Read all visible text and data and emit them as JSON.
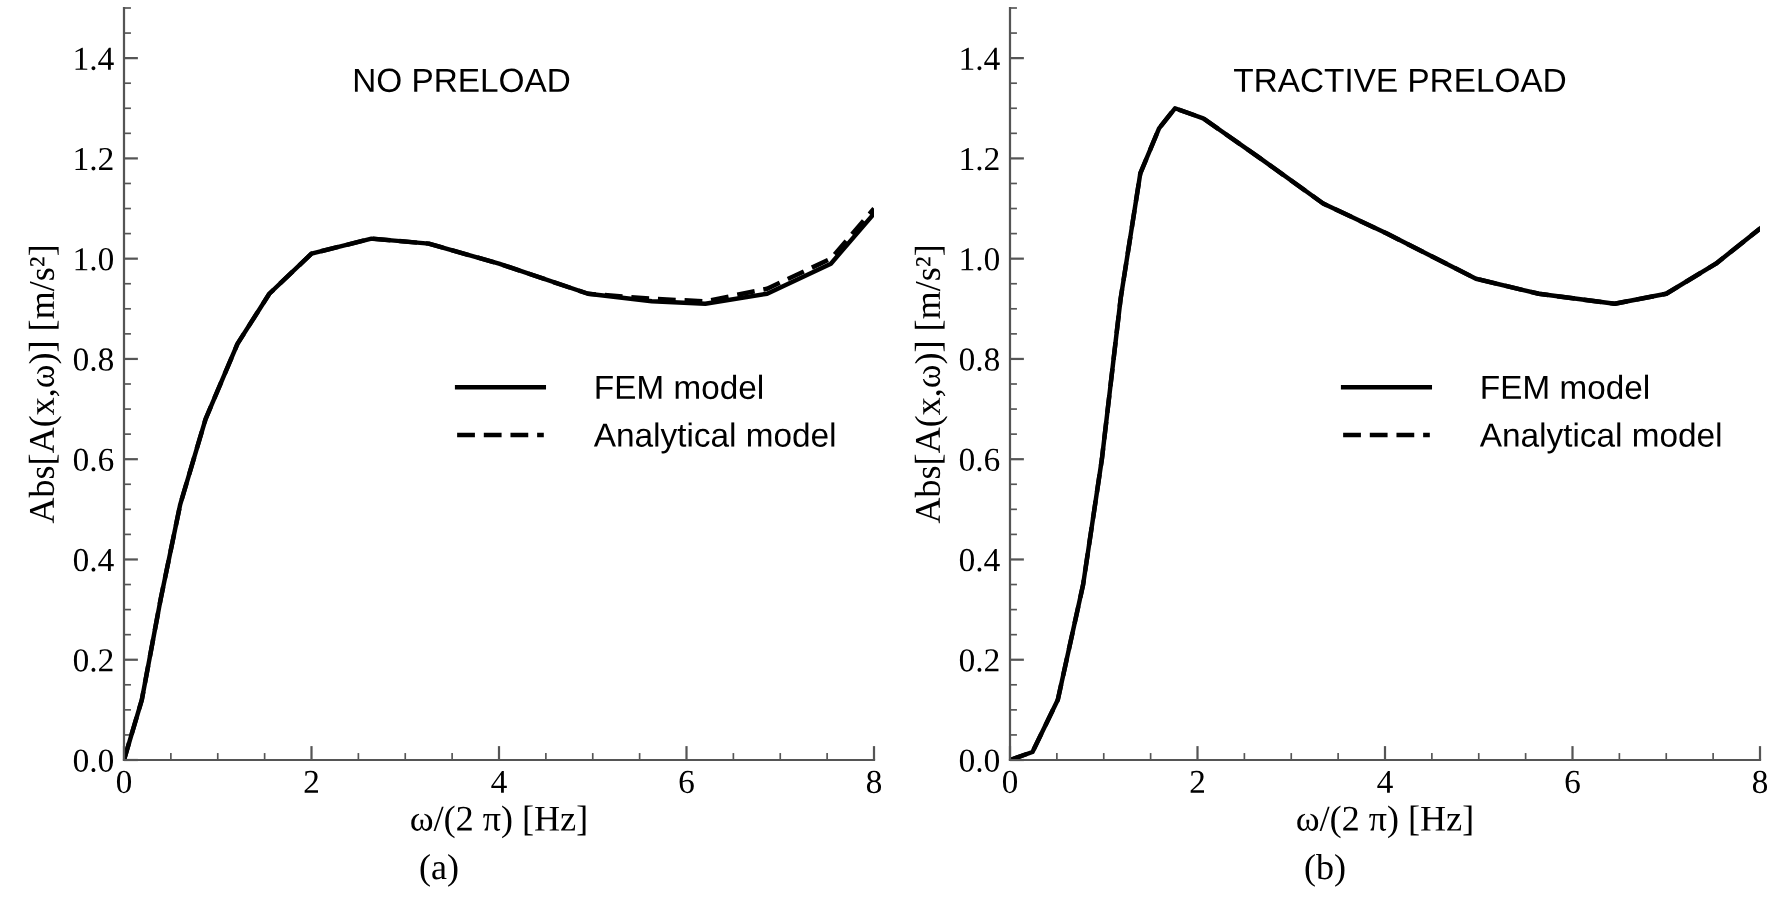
{
  "chart_data": [
    {
      "type": "line",
      "xlabel": "ω/(2 π) [Hz]",
      "ylabel": "Abs[A(x,ω)] [m/s²]",
      "annotations": [
        "NO PRELOAD",
        "(a)"
      ],
      "xlim": [
        0,
        8
      ],
      "ylim": [
        0,
        1.5
      ],
      "xticks": [
        0,
        2,
        4,
        6,
        8
      ],
      "yticks": [
        {
          "value": 0,
          "label": "0.0"
        },
        {
          "value": 0.2,
          "label": "0.2"
        },
        {
          "value": 0.4,
          "label": "0.4"
        },
        {
          "value": 0.6,
          "label": "0.6"
        },
        {
          "value": 0.8,
          "label": "0.8"
        },
        {
          "value": 1.0,
          "label": "1.0"
        },
        {
          "value": 1.2,
          "label": "1.2"
        },
        {
          "value": 1.4,
          "label": "1.4"
        }
      ],
      "legend": "right",
      "grid": false,
      "marker": "none",
      "series": [
        {
          "name": "FEM model",
          "color": "#000000",
          "line_style": "solid",
          "x": [
            0,
            0.19,
            0.39,
            0.6,
            0.87,
            1.21,
            1.55,
            2,
            2.64,
            3.25,
            4,
            4.95,
            5.63,
            6.2,
            6.86,
            7.54,
            8
          ],
          "values": [
            0,
            0.12,
            0.32,
            0.51,
            0.68,
            0.83,
            0.93,
            1.01,
            1.04,
            1.03,
            0.99,
            0.93,
            0.915,
            0.91,
            0.93,
            0.99,
            1.09
          ]
        },
        {
          "name": "Analytical model",
          "color": "#000000",
          "line_style": "dashed",
          "x": [
            0,
            0.19,
            0.39,
            0.6,
            0.87,
            1.21,
            1.55,
            2,
            2.64,
            3.25,
            4,
            4.95,
            5.63,
            6.2,
            6.86,
            7.54,
            8
          ],
          "values": [
            0,
            0.12,
            0.32,
            0.51,
            0.68,
            0.83,
            0.93,
            1.01,
            1.04,
            1.03,
            0.99,
            0.93,
            0.92,
            0.915,
            0.94,
            1.0,
            1.1
          ]
        }
      ]
    },
    {
      "type": "line",
      "xlabel": "ω/(2 π) [Hz]",
      "ylabel": "Abs[A(x,ω)] [m/s²]",
      "annotations": [
        "TRACTIVE PRELOAD",
        "(b)"
      ],
      "xlim": [
        0,
        8
      ],
      "ylim": [
        0,
        1.5
      ],
      "xticks": [
        0,
        2,
        4,
        6,
        8
      ],
      "yticks": [
        {
          "value": 0,
          "label": "0.0"
        },
        {
          "value": 0.2,
          "label": "0.2"
        },
        {
          "value": 0.4,
          "label": "0.4"
        },
        {
          "value": 0.6,
          "label": "0.6"
        },
        {
          "value": 0.8,
          "label": "0.8"
        },
        {
          "value": 1.0,
          "label": "1.0"
        },
        {
          "value": 1.2,
          "label": "1.2"
        },
        {
          "value": 1.4,
          "label": "1.4"
        }
      ],
      "legend": "right",
      "grid": false,
      "marker": "none",
      "series": [
        {
          "name": "FEM model",
          "color": "#000000",
          "line_style": "solid",
          "x": [
            0,
            0.24,
            0.51,
            0.78,
            0.98,
            1.18,
            1.39,
            1.59,
            1.76,
            2.06,
            2.67,
            3.34,
            4.02,
            4.97,
            5.64,
            6.45,
            7.0,
            7.53,
            8
          ],
          "values": [
            0,
            0.016,
            0.12,
            0.35,
            0.6,
            0.92,
            1.17,
            1.26,
            1.3,
            1.28,
            1.2,
            1.11,
            1.05,
            0.96,
            0.93,
            0.91,
            0.93,
            0.99,
            1.06
          ]
        },
        {
          "name": "Analytical model",
          "color": "#000000",
          "line_style": "dashed",
          "x": [
            0,
            0.24,
            0.51,
            0.78,
            0.98,
            1.18,
            1.39,
            1.59,
            1.76,
            2.06,
            2.67,
            3.34,
            4.02,
            4.97,
            5.64,
            6.45,
            7.0,
            7.53,
            8
          ],
          "values": [
            0,
            0.016,
            0.12,
            0.35,
            0.6,
            0.92,
            1.17,
            1.26,
            1.3,
            1.28,
            1.2,
            1.11,
            1.05,
            0.96,
            0.93,
            0.91,
            0.93,
            0.99,
            1.06
          ]
        }
      ]
    }
  ]
}
